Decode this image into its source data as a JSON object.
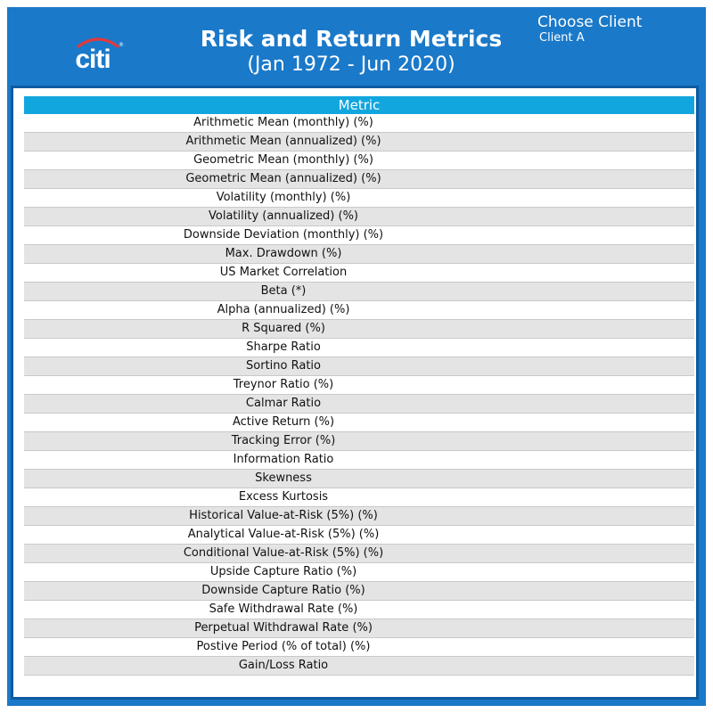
{
  "header": {
    "logo_text": "citi",
    "title": "Risk and Return Metrics",
    "subtitle": "(Jan 1972 - Jun 2020)",
    "client_selector_label": "Choose Client",
    "client_selected": "Client A"
  },
  "colors": {
    "header_background": "#1a79c9",
    "table_header": "#12a6df",
    "row_alt": "#e4e4e4",
    "logo_arc": "#e03a3e"
  },
  "table": {
    "columns": [
      "Metric"
    ],
    "rows": [
      "Arithmetic Mean (monthly) (%)",
      "Arithmetic Mean (annualized) (%)",
      "Geometric Mean (monthly) (%)",
      "Geometric Mean (annualized) (%)",
      "Volatility (monthly) (%)",
      "Volatility (annualized) (%)",
      "Downside Deviation (monthly) (%)",
      "Max. Drawdown (%)",
      "US Market Correlation",
      "Beta (*)",
      "Alpha (annualized) (%)",
      "R Squared (%)",
      "Sharpe Ratio",
      "Sortino Ratio",
      "Treynor Ratio (%)",
      "Calmar Ratio",
      "Active Return (%)",
      "Tracking Error (%)",
      "Information Ratio",
      "Skewness",
      "Excess Kurtosis",
      "Historical Value-at-Risk (5%) (%)",
      "Analytical Value-at-Risk (5%) (%)",
      "Conditional Value-at-Risk (5%) (%)",
      "Upside Capture Ratio (%)",
      "Downside Capture Ratio (%)",
      "Safe Withdrawal Rate (%)",
      "Perpetual Withdrawal Rate (%)",
      "Postive Period (% of total) (%)",
      "Gain/Loss Ratio"
    ]
  }
}
